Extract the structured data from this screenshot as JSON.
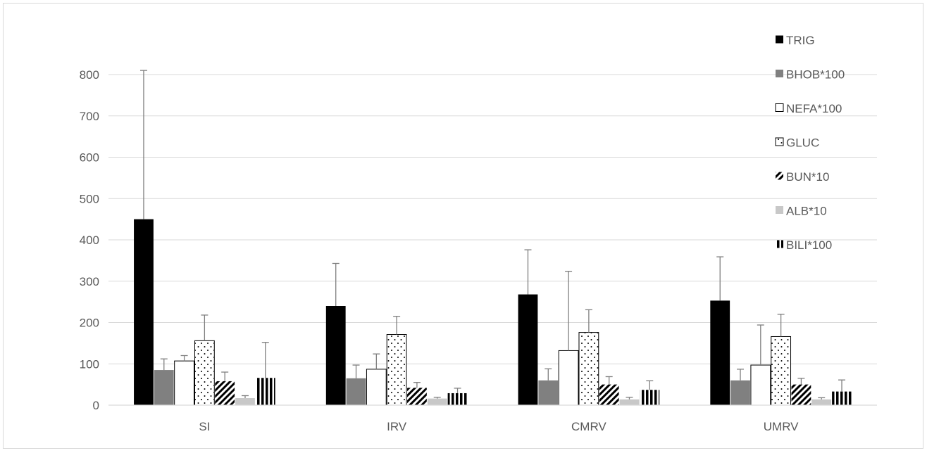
{
  "chart_data": {
    "type": "bar",
    "title": "",
    "xlabel": "",
    "ylabel": "",
    "categories": [
      "SI",
      "IRV",
      "CMRV",
      "UMRV"
    ],
    "ylim": [
      0,
      800
    ],
    "yticks": [
      0,
      100,
      200,
      300,
      400,
      500,
      600,
      700,
      800
    ],
    "grid": true,
    "legend_position": "right",
    "error_bars": "upper",
    "series": [
      {
        "name": "TRIG",
        "pattern": "solid",
        "color": "#000000",
        "values": [
          450,
          240,
          268,
          253
        ],
        "error_upper": [
          810,
          343,
          376,
          359
        ]
      },
      {
        "name": "BHOB*100",
        "pattern": "solid",
        "color": "#808080",
        "values": [
          85,
          65,
          60,
          60
        ],
        "error_upper": [
          112,
          97,
          88,
          87
        ]
      },
      {
        "name": "NEFA*100",
        "pattern": "hollow",
        "color": "#ffffff",
        "values": [
          107,
          87,
          132,
          97
        ],
        "error_upper": [
          120,
          124,
          324,
          194
        ]
      },
      {
        "name": "GLUC",
        "pattern": "dotted",
        "color": "#ffffff",
        "values": [
          156,
          171,
          176,
          166
        ],
        "error_upper": [
          218,
          215,
          231,
          220
        ]
      },
      {
        "name": "BUN*10",
        "pattern": "diagonal",
        "color": "#000000",
        "values": [
          58,
          42,
          50,
          50
        ],
        "error_upper": [
          80,
          55,
          69,
          65
        ]
      },
      {
        "name": "ALB*10",
        "pattern": "solid",
        "color": "#c8c8c8",
        "values": [
          17,
          16,
          14,
          14
        ],
        "error_upper": [
          23,
          19,
          19,
          18
        ]
      },
      {
        "name": "BILI*100",
        "pattern": "vertical",
        "color": "#000000",
        "values": [
          66,
          29,
          37,
          33
        ],
        "error_upper": [
          152,
          41,
          59,
          61
        ]
      }
    ]
  }
}
